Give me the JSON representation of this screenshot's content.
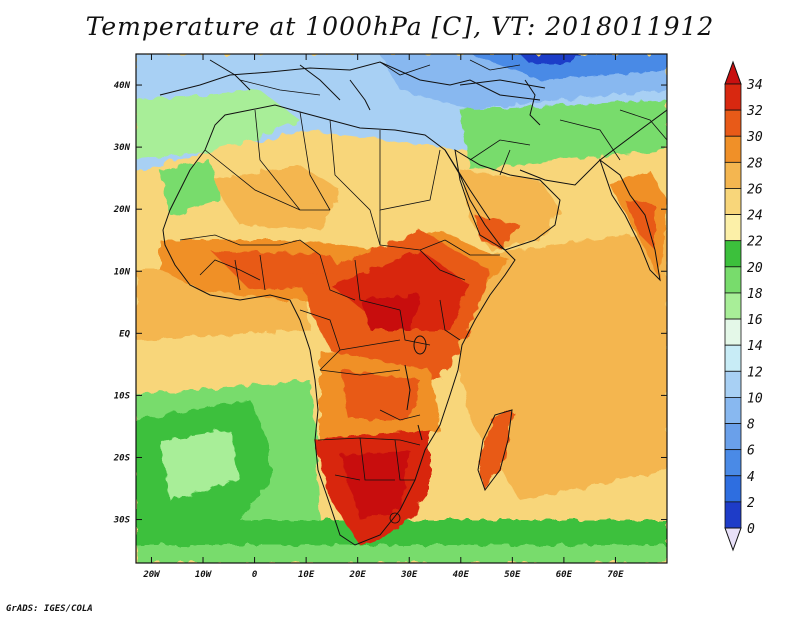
{
  "title": "Temperature at 1000hPa [C], VT: 2018011912",
  "credit": "GrADS: IGES/COLA",
  "map": {
    "variable": "Temperature",
    "level": "1000hPa",
    "units": "C",
    "valid_time": "2018011912",
    "lon_range": [
      -23,
      80
    ],
    "lat_range": [
      -37,
      45
    ],
    "x_ticks": [
      {
        "value": -20,
        "label": "20W"
      },
      {
        "value": -10,
        "label": "10W"
      },
      {
        "value": 0,
        "label": "0"
      },
      {
        "value": 10,
        "label": "10E"
      },
      {
        "value": 20,
        "label": "20E"
      },
      {
        "value": 30,
        "label": "30E"
      },
      {
        "value": 40,
        "label": "40E"
      },
      {
        "value": 50,
        "label": "50E"
      },
      {
        "value": 60,
        "label": "60E"
      },
      {
        "value": 70,
        "label": "70E"
      }
    ],
    "y_ticks": [
      {
        "value": 40,
        "label": "40N"
      },
      {
        "value": 30,
        "label": "30N"
      },
      {
        "value": 20,
        "label": "20N"
      },
      {
        "value": 10,
        "label": "10N"
      },
      {
        "value": 0,
        "label": "EQ"
      },
      {
        "value": -10,
        "label": "10S"
      },
      {
        "value": -20,
        "label": "20S"
      },
      {
        "value": -30,
        "label": "30S"
      }
    ]
  },
  "colorbar": {
    "levels": [
      "0",
      "2",
      "4",
      "6",
      "8",
      "10",
      "12",
      "14",
      "16",
      "18",
      "20",
      "22",
      "24",
      "26",
      "28",
      "30",
      "32",
      "34"
    ],
    "colors": [
      "#1a0a8c",
      "#1e3cc8",
      "#2e6ee0",
      "#4a8ae6",
      "#6aa0ea",
      "#88b8f0",
      "#a8d0f4",
      "#c8ecf6",
      "#e4f8e8",
      "#a8ee98",
      "#78dc6c",
      "#3cc03c",
      "#fcf0a8",
      "#f8d67a",
      "#f4b650",
      "#f09028",
      "#e85a18",
      "#d82810",
      "#c81010"
    ]
  },
  "colors": {
    "ocean_warm": "#f4b650",
    "ocean_mild": "#f8d67a",
    "land_hot": "#d82810",
    "land_cold": "#88b8f0",
    "borders": "#111111"
  }
}
